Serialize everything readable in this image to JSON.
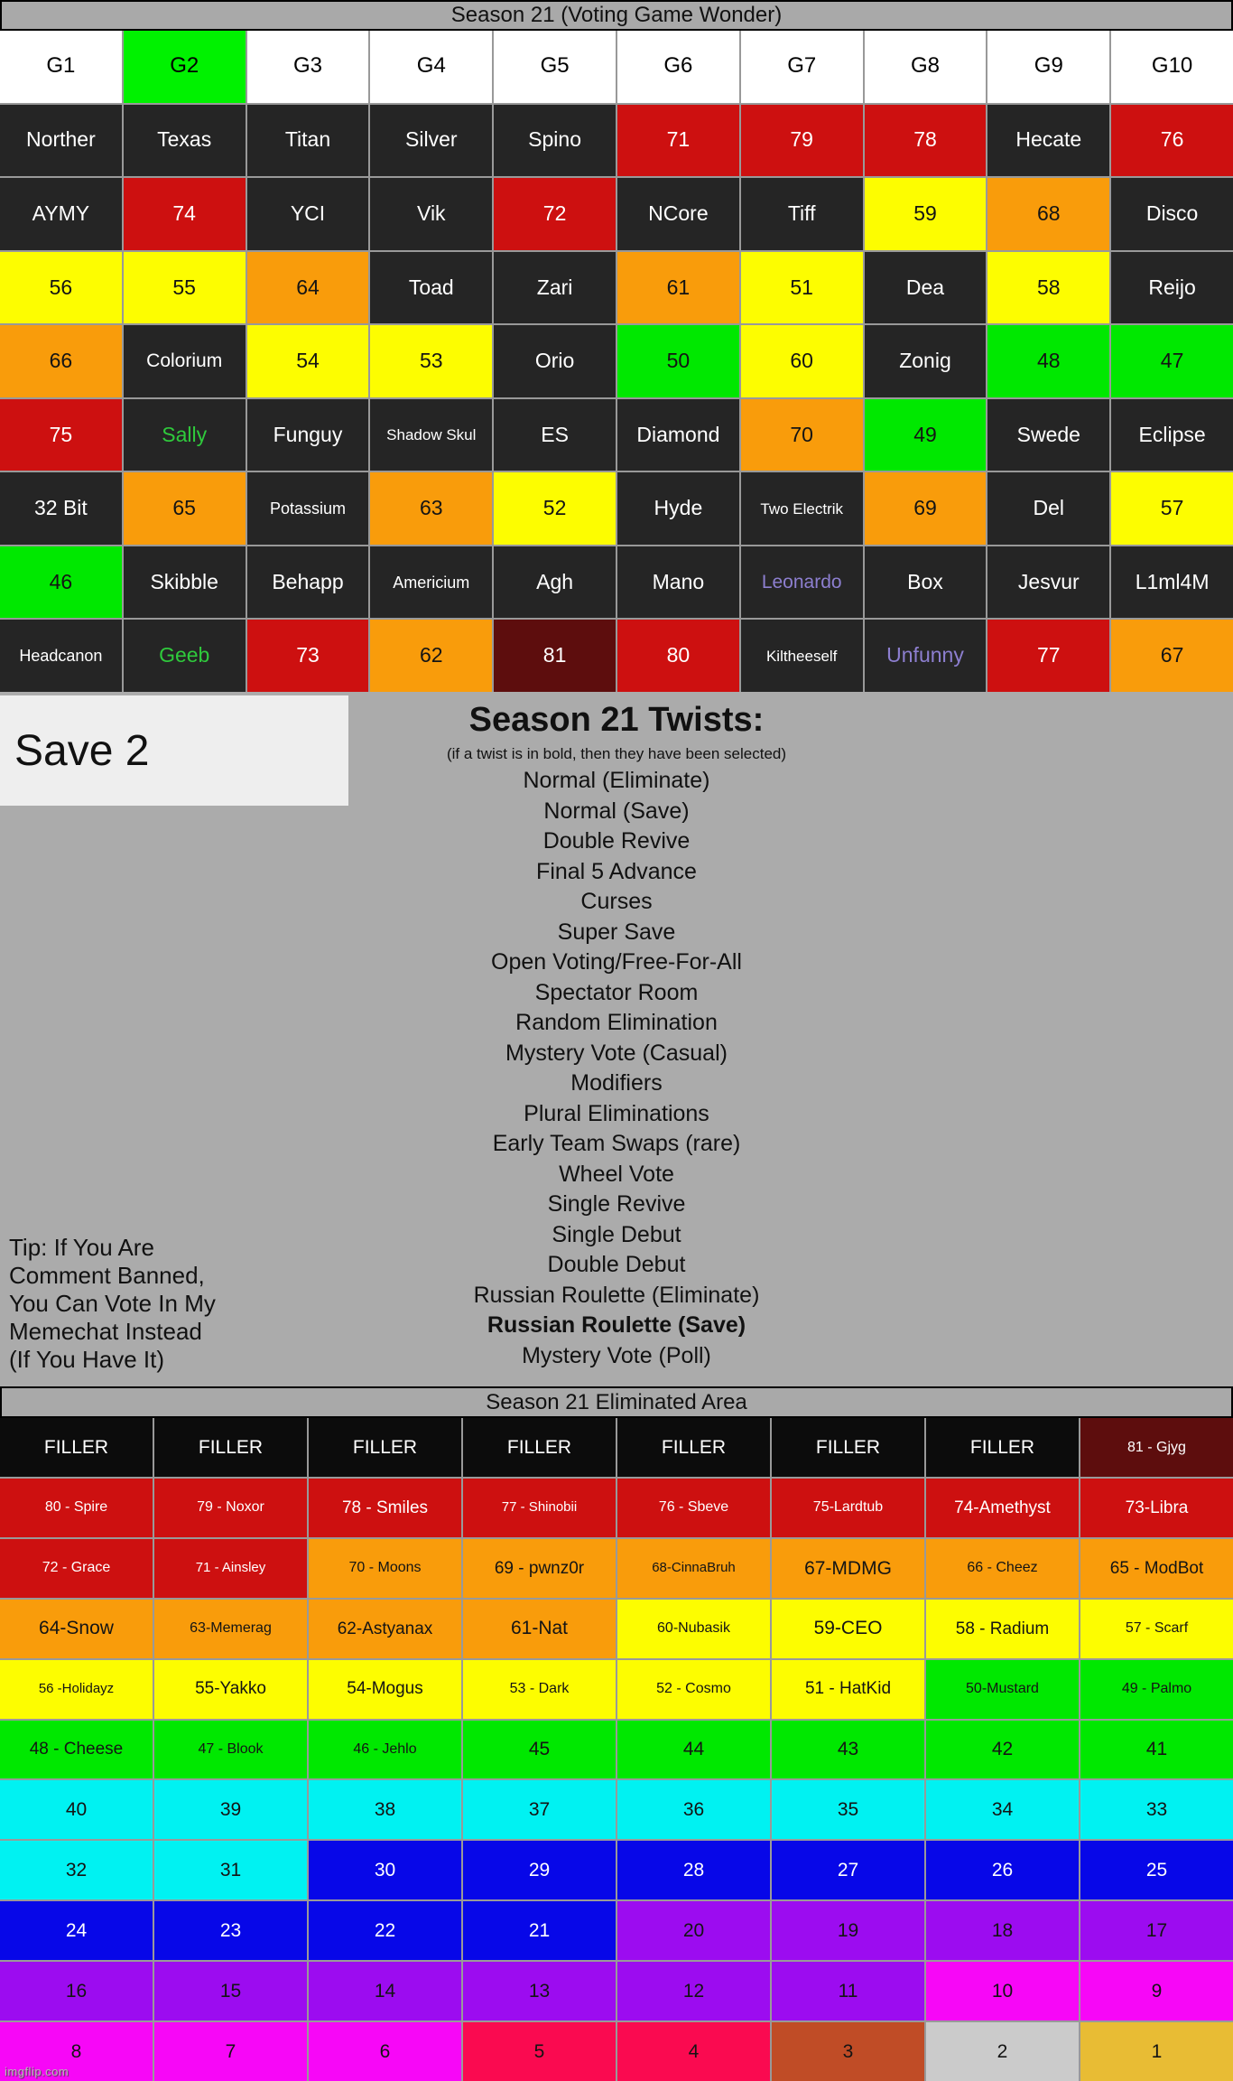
{
  "header": {
    "title": "Season 21 (Voting Game Wonder)"
  },
  "colors": {
    "page_bg": "#ababab",
    "bar_bg": "#a9a9a9",
    "cell_dark": "#252525",
    "red": "#cd1010",
    "dark_red": "#5d0d0d",
    "orange": "#f99c0b",
    "yellow": "#fdfd00",
    "green": "#00e800",
    "cyan": "#00f2f2",
    "blue": "#0707e8",
    "purple": "#9c0cf0",
    "magenta": "#f707f7",
    "crimson": "#fa0a50",
    "chocolate": "#c04c26",
    "light_gray": "#cbcbcb",
    "gold": "#e8bc34",
    "filler_black": "#0c0c0c",
    "g2_green": "#00f200",
    "save_box": "#eeeeee",
    "name_green_text": "#2fca3c",
    "name_violet_text": "#8d7fd0"
  },
  "top_grid": {
    "col_headers": [
      {
        "t": "G1",
        "c": "white"
      },
      {
        "t": "G2",
        "c": "g2"
      },
      {
        "t": "G3",
        "c": "white"
      },
      {
        "t": "G4",
        "c": "white"
      },
      {
        "t": "G5",
        "c": "white"
      },
      {
        "t": "G6",
        "c": "white"
      },
      {
        "t": "G7",
        "c": "white"
      },
      {
        "t": "G8",
        "c": "white"
      },
      {
        "t": "G9",
        "c": "white"
      },
      {
        "t": "G10",
        "c": "white"
      }
    ],
    "rows": [
      [
        {
          "t": "Norther",
          "c": "dark"
        },
        {
          "t": "Texas",
          "c": "dark"
        },
        {
          "t": "Titan",
          "c": "dark"
        },
        {
          "t": "Silver",
          "c": "dark"
        },
        {
          "t": "Spino",
          "c": "dark"
        },
        {
          "t": "71",
          "c": "red"
        },
        {
          "t": "79",
          "c": "red"
        },
        {
          "t": "78",
          "c": "red"
        },
        {
          "t": "Hecate",
          "c": "dark"
        },
        {
          "t": "76",
          "c": "red"
        }
      ],
      [
        {
          "t": "AYMY",
          "c": "dark"
        },
        {
          "t": "74",
          "c": "red"
        },
        {
          "t": "YCI",
          "c": "dark"
        },
        {
          "t": "Vik",
          "c": "dark"
        },
        {
          "t": "72",
          "c": "red"
        },
        {
          "t": "NCore",
          "c": "dark"
        },
        {
          "t": "Tiff",
          "c": "dark"
        },
        {
          "t": "59",
          "c": "yellow"
        },
        {
          "t": "68",
          "c": "orange"
        },
        {
          "t": "Disco",
          "c": "dark"
        }
      ],
      [
        {
          "t": "56",
          "c": "yellow"
        },
        {
          "t": "55",
          "c": "yellow"
        },
        {
          "t": "64",
          "c": "orange"
        },
        {
          "t": "Toad",
          "c": "dark"
        },
        {
          "t": "Zari",
          "c": "dark"
        },
        {
          "t": "61",
          "c": "orange"
        },
        {
          "t": "51",
          "c": "yellow"
        },
        {
          "t": "Dea",
          "c": "dark"
        },
        {
          "t": "58",
          "c": "yellow"
        },
        {
          "t": "Reijo",
          "c": "dark"
        }
      ],
      [
        {
          "t": "66",
          "c": "orange"
        },
        {
          "t": "Colorium",
          "c": "dark"
        },
        {
          "t": "54",
          "c": "yellow"
        },
        {
          "t": "53",
          "c": "yellow"
        },
        {
          "t": "Orio",
          "c": "dark"
        },
        {
          "t": "50",
          "c": "green"
        },
        {
          "t": "60",
          "c": "yellow"
        },
        {
          "t": "Zonig",
          "c": "dark"
        },
        {
          "t": "48",
          "c": "green"
        },
        {
          "t": "47",
          "c": "green"
        }
      ],
      [
        {
          "t": "75",
          "c": "red"
        },
        {
          "t": "Sally",
          "c": "dark",
          "tc": "green"
        },
        {
          "t": "Funguy",
          "c": "dark"
        },
        {
          "t": "Shadow Skul",
          "c": "dark"
        },
        {
          "t": "ES",
          "c": "dark"
        },
        {
          "t": "Diamond",
          "c": "dark"
        },
        {
          "t": "70",
          "c": "orange"
        },
        {
          "t": "49",
          "c": "green"
        },
        {
          "t": "Swede",
          "c": "dark"
        },
        {
          "t": "Eclipse",
          "c": "dark"
        }
      ],
      [
        {
          "t": "32 Bit",
          "c": "dark"
        },
        {
          "t": "65",
          "c": "orange"
        },
        {
          "t": "Potassium",
          "c": "dark"
        },
        {
          "t": "63",
          "c": "orange"
        },
        {
          "t": "52",
          "c": "yellow"
        },
        {
          "t": "Hyde",
          "c": "dark"
        },
        {
          "t": "Two Electrik",
          "c": "dark"
        },
        {
          "t": "69",
          "c": "orange"
        },
        {
          "t": "Del",
          "c": "dark"
        },
        {
          "t": "57",
          "c": "yellow"
        }
      ],
      [
        {
          "t": "46",
          "c": "green"
        },
        {
          "t": "Skibble",
          "c": "dark"
        },
        {
          "t": "Behapp",
          "c": "dark"
        },
        {
          "t": "Americium",
          "c": "dark"
        },
        {
          "t": "Agh",
          "c": "dark"
        },
        {
          "t": "Mano",
          "c": "dark"
        },
        {
          "t": "Leonardo",
          "c": "dark",
          "tc": "violet"
        },
        {
          "t": "Box",
          "c": "dark"
        },
        {
          "t": "Jesvur",
          "c": "dark"
        },
        {
          "t": "L1ml4M",
          "c": "dark"
        }
      ],
      [
        {
          "t": "Headcanon",
          "c": "dark"
        },
        {
          "t": "Geeb",
          "c": "dark",
          "tc": "green"
        },
        {
          "t": "73",
          "c": "red"
        },
        {
          "t": "62",
          "c": "orange"
        },
        {
          "t": "81",
          "c": "darkred"
        },
        {
          "t": "80",
          "c": "red"
        },
        {
          "t": "Kiltheeself",
          "c": "dark"
        },
        {
          "t": "Unfunny",
          "c": "dark",
          "tc": "violet"
        },
        {
          "t": "77",
          "c": "red"
        },
        {
          "t": "67",
          "c": "orange"
        }
      ]
    ]
  },
  "middle": {
    "save_label": "Save 2",
    "twists_title": "Season 21 Twists:",
    "twists_note": "(if a twist is in bold, then they have been selected)",
    "twists": [
      {
        "label": "Normal (Eliminate)",
        "bold": false
      },
      {
        "label": "Normal (Save)",
        "bold": false
      },
      {
        "label": "Double Revive",
        "bold": false
      },
      {
        "label": "Final 5 Advance",
        "bold": false
      },
      {
        "label": "Curses",
        "bold": false
      },
      {
        "label": "Super Save",
        "bold": false
      },
      {
        "label": "Open Voting/Free-For-All",
        "bold": false
      },
      {
        "label": "Spectator Room",
        "bold": false
      },
      {
        "label": "Random Elimination",
        "bold": false
      },
      {
        "label": "Mystery Vote (Casual)",
        "bold": false
      },
      {
        "label": "Modifiers",
        "bold": false
      },
      {
        "label": "Plural Eliminations",
        "bold": false
      },
      {
        "label": "Early Team Swaps (rare)",
        "bold": false
      },
      {
        "label": "Wheel Vote",
        "bold": false
      },
      {
        "label": "Single Revive",
        "bold": false
      },
      {
        "label": "Single Debut",
        "bold": false
      },
      {
        "label": "Double Debut",
        "bold": false
      },
      {
        "label": "Russian Roulette (Eliminate)",
        "bold": false
      },
      {
        "label": "Russian Roulette (Save)",
        "bold": true
      },
      {
        "label": "Mystery Vote (Poll)",
        "bold": false
      }
    ],
    "tip_lines": [
      "Tip: If You Are",
      "Comment Banned,",
      "You Can Vote In My",
      "Memechat Instead",
      "(If You Have It)"
    ]
  },
  "eliminated": {
    "title": "Season 21 Eliminated Area",
    "rows": [
      [
        {
          "t": "FILLER",
          "c": "black"
        },
        {
          "t": "FILLER",
          "c": "black"
        },
        {
          "t": "FILLER",
          "c": "black"
        },
        {
          "t": "FILLER",
          "c": "black"
        },
        {
          "t": "FILLER",
          "c": "black"
        },
        {
          "t": "FILLER",
          "c": "black"
        },
        {
          "t": "FILLER",
          "c": "black"
        },
        {
          "t": "81 - Gjyg",
          "c": "darkred"
        }
      ],
      [
        {
          "t": "80 - Spire",
          "c": "red"
        },
        {
          "t": "79 - Noxor",
          "c": "red"
        },
        {
          "t": "78 - Smiles",
          "c": "red"
        },
        {
          "t": "77 - Shinobii",
          "c": "red"
        },
        {
          "t": "76 - Sbeve",
          "c": "red"
        },
        {
          "t": "75-Lardtub",
          "c": "red"
        },
        {
          "t": "74-Amethyst",
          "c": "red"
        },
        {
          "t": "73-Libra",
          "c": "red"
        }
      ],
      [
        {
          "t": "72 - Grace",
          "c": "red"
        },
        {
          "t": "71 - Ainsley",
          "c": "red"
        },
        {
          "t": "70 - Moons",
          "c": "orange"
        },
        {
          "t": "69 - pwnz0r",
          "c": "orange"
        },
        {
          "t": "68-CinnaBruh",
          "c": "orange"
        },
        {
          "t": "67-MDMG",
          "c": "orange"
        },
        {
          "t": "66 - Cheez",
          "c": "orange"
        },
        {
          "t": "65 - ModBot",
          "c": "orange"
        }
      ],
      [
        {
          "t": "64-Snow",
          "c": "orange"
        },
        {
          "t": "63-Memerag",
          "c": "orange"
        },
        {
          "t": "62-Astyanax",
          "c": "orange"
        },
        {
          "t": "61-Nat",
          "c": "orange"
        },
        {
          "t": "60-Nubasik",
          "c": "yellow"
        },
        {
          "t": "59-CEO",
          "c": "yellow"
        },
        {
          "t": "58 - Radium",
          "c": "yellow"
        },
        {
          "t": "57 - Scarf",
          "c": "yellow"
        }
      ],
      [
        {
          "t": "56 -Holidayz",
          "c": "yellow"
        },
        {
          "t": "55-Yakko",
          "c": "yellow"
        },
        {
          "t": "54-Mogus",
          "c": "yellow"
        },
        {
          "t": "53 - Dark",
          "c": "yellow"
        },
        {
          "t": "52 - Cosmo",
          "c": "yellow"
        },
        {
          "t": "51 - HatKid",
          "c": "yellow"
        },
        {
          "t": "50-Mustard",
          "c": "green"
        },
        {
          "t": "49 - Palmo",
          "c": "green"
        }
      ],
      [
        {
          "t": "48 - Cheese",
          "c": "green"
        },
        {
          "t": "47 - Blook",
          "c": "green"
        },
        {
          "t": "46 - Jehlo",
          "c": "green"
        },
        {
          "t": "45",
          "c": "green"
        },
        {
          "t": "44",
          "c": "green"
        },
        {
          "t": "43",
          "c": "green"
        },
        {
          "t": "42",
          "c": "green"
        },
        {
          "t": "41",
          "c": "green"
        }
      ],
      [
        {
          "t": "40",
          "c": "cyan"
        },
        {
          "t": "39",
          "c": "cyan"
        },
        {
          "t": "38",
          "c": "cyan"
        },
        {
          "t": "37",
          "c": "cyan"
        },
        {
          "t": "36",
          "c": "cyan"
        },
        {
          "t": "35",
          "c": "cyan"
        },
        {
          "t": "34",
          "c": "cyan"
        },
        {
          "t": "33",
          "c": "cyan"
        }
      ],
      [
        {
          "t": "32",
          "c": "cyan"
        },
        {
          "t": "31",
          "c": "cyan"
        },
        {
          "t": "30",
          "c": "blue"
        },
        {
          "t": "29",
          "c": "blue"
        },
        {
          "t": "28",
          "c": "blue"
        },
        {
          "t": "27",
          "c": "blue"
        },
        {
          "t": "26",
          "c": "blue"
        },
        {
          "t": "25",
          "c": "blue"
        }
      ],
      [
        {
          "t": "24",
          "c": "blue"
        },
        {
          "t": "23",
          "c": "blue"
        },
        {
          "t": "22",
          "c": "blue"
        },
        {
          "t": "21",
          "c": "blue"
        },
        {
          "t": "20",
          "c": "purple"
        },
        {
          "t": "19",
          "c": "purple"
        },
        {
          "t": "18",
          "c": "purple"
        },
        {
          "t": "17",
          "c": "purple"
        }
      ],
      [
        {
          "t": "16",
          "c": "purple"
        },
        {
          "t": "15",
          "c": "purple"
        },
        {
          "t": "14",
          "c": "purple"
        },
        {
          "t": "13",
          "c": "purple"
        },
        {
          "t": "12",
          "c": "purple"
        },
        {
          "t": "11",
          "c": "purple"
        },
        {
          "t": "10",
          "c": "magenta"
        },
        {
          "t": "9",
          "c": "magenta"
        }
      ],
      [
        {
          "t": "8",
          "c": "magenta"
        },
        {
          "t": "7",
          "c": "magenta"
        },
        {
          "t": "6",
          "c": "magenta"
        },
        {
          "t": "5",
          "c": "crimson"
        },
        {
          "t": "4",
          "c": "crimson"
        },
        {
          "t": "3",
          "c": "chocolate"
        },
        {
          "t": "2",
          "c": "lightgray"
        },
        {
          "t": "1",
          "c": "gold"
        }
      ]
    ]
  },
  "watermark": "imgflip.com"
}
